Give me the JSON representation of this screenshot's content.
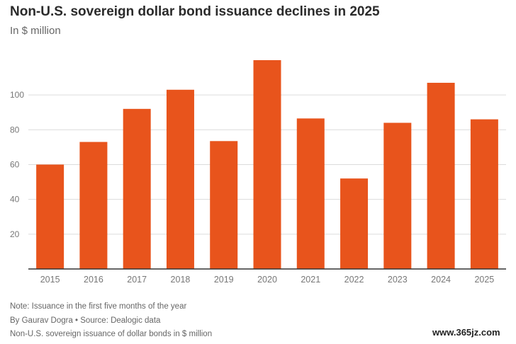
{
  "chart_data": {
    "type": "bar",
    "title": "Non-U.S. sovereign dollar bond issuance declines in 2025",
    "subtitle": "In $ million",
    "categories": [
      "2015",
      "2016",
      "2017",
      "2018",
      "2019",
      "2020",
      "2021",
      "2022",
      "2023",
      "2024",
      "2025"
    ],
    "values": [
      60,
      73,
      92,
      103,
      73.5,
      120,
      86.5,
      52,
      84,
      107,
      86
    ],
    "yticks": [
      20,
      40,
      60,
      80,
      100
    ],
    "ylim": [
      0,
      120
    ],
    "grid": true,
    "bar_color": "#e8541c"
  },
  "footer": {
    "note": "Note: Issuance in the first five months of the year",
    "byline": "By Gaurav Dogra • Source: Dealogic data",
    "caption": "Non-U.S. sovereign issuance of dollar bonds in $ million"
  },
  "watermark": "www.365jz.com",
  "colors": {
    "grid": "#dcdcdc",
    "axis": "#333333",
    "tick_text": "#777777"
  }
}
